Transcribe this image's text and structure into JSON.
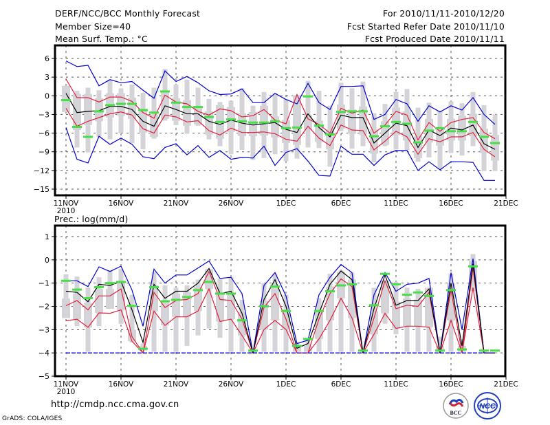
{
  "header": {
    "title": "DERF/NCC/BCC Monthly Forecast",
    "member_size": "Member Size=40",
    "var_label_top": "Mean Surf. Temp.: °C",
    "period": "For 2010/11/11-2010/12/20",
    "start_date": "Fcst Started Refer Date 2010/11/10",
    "produced_date": "Fcst Produced Date 2010/11/11"
  },
  "footer": {
    "url": "http://cmdp.ncc.cma.gov.cn",
    "grads": "GrADS: COLA/IGES",
    "logo_left": "BCC",
    "logo_right": "NCC"
  },
  "colors": {
    "mean": "#000000",
    "inner_band": "#e0203c",
    "outer_band": "#0000d0",
    "median_marker": "#44e044",
    "box": "#d4d4d8",
    "grid": "#555555"
  },
  "chart_data": [
    {
      "type": "line",
      "title": "Mean Surf. Temp.: °C",
      "xlabel": "",
      "ylabel": "°C",
      "ylim": [
        -16,
        8
      ],
      "yticks": [
        6,
        3,
        0,
        -3,
        -6,
        -9,
        -12,
        -15
      ],
      "ytick_labels": [
        "6",
        "3",
        "0",
        "−3",
        "−6",
        "−9",
        "−12",
        "−15"
      ],
      "xticks": [
        "11NOV",
        "16NOV",
        "21NOV",
        "26NOV",
        "1DEC",
        "6DEC",
        "11DEC",
        "16DEC",
        "21DEC"
      ],
      "xtick_day_offsets": [
        0,
        5,
        10,
        15,
        20,
        25,
        30,
        35,
        40
      ],
      "year_label": "2010",
      "grid": true,
      "x_days": 40,
      "series": [
        {
          "name": "max",
          "color_key": "outer_band",
          "values": [
            5.6,
            4.7,
            4.9,
            1.6,
            2.6,
            2.1,
            2.3,
            0.9,
            -0.4,
            4.0,
            2.3,
            3.1,
            2.1,
            0.8,
            0.2,
            0.3,
            1.1,
            -1.1,
            -1.1,
            0.4,
            -0.6,
            -1.3,
            2.0,
            -1.1,
            -2.2,
            1.5,
            1.5,
            1.6,
            -3.8,
            -3.0,
            -0.6,
            -1.3,
            -4.1,
            -1.6,
            -2.6,
            -1.6,
            -2.3,
            -0.3,
            -3.0,
            -4.6
          ]
        },
        {
          "name": "upper",
          "color_key": "inner_band",
          "values": [
            2.7,
            -0.3,
            -0.3,
            -1.0,
            -0.2,
            -0.2,
            -0.9,
            -2.7,
            -3.6,
            0.1,
            -1.0,
            -1.3,
            -2.5,
            -3.1,
            -2.1,
            -2.4,
            -3.4,
            -3.2,
            -2.2,
            -3.9,
            -4.5,
            0.2,
            -3.7,
            -4.6,
            -6.0,
            -2.0,
            -2.8,
            -2.3,
            -6.0,
            -4.7,
            -2.5,
            -3.1,
            -7.1,
            -4.3,
            -5.7,
            -4.3,
            -3.8,
            -3.5,
            -5.9,
            -6.9
          ]
        },
        {
          "name": "mean",
          "color_key": "mean",
          "values": [
            0.4,
            -2.7,
            -2.5,
            -2.4,
            -1.7,
            -1.7,
            -2.2,
            -4.1,
            -4.9,
            -1.6,
            -2.2,
            -2.9,
            -2.9,
            -4.1,
            -4.6,
            -3.9,
            -4.4,
            -4.7,
            -4.5,
            -4.3,
            -5.4,
            -5.9,
            -2.9,
            -5.1,
            -6.6,
            -3.1,
            -3.5,
            -3.5,
            -7.6,
            -6.0,
            -4.4,
            -4.8,
            -8.3,
            -5.5,
            -6.4,
            -5.2,
            -5.5,
            -4.7,
            -7.7,
            -8.6
          ]
        },
        {
          "name": "lower",
          "color_key": "inner_band",
          "values": [
            -2.0,
            -4.9,
            -4.1,
            -3.5,
            -2.9,
            -2.6,
            -3.1,
            -5.3,
            -6.0,
            -3.1,
            -3.4,
            -4.2,
            -4.0,
            -5.6,
            -6.3,
            -5.2,
            -5.9,
            -5.9,
            -5.8,
            -6.1,
            -7.0,
            -7.3,
            -4.9,
            -6.8,
            -8.0,
            -4.7,
            -5.5,
            -5.6,
            -8.7,
            -7.3,
            -5.7,
            -6.6,
            -9.4,
            -6.9,
            -7.4,
            -6.6,
            -6.6,
            -5.9,
            -8.6,
            -9.8
          ]
        },
        {
          "name": "min",
          "color_key": "outer_band",
          "values": [
            -5.1,
            -10.2,
            -10.8,
            -6.5,
            -7.8,
            -6.8,
            -7.8,
            -9.8,
            -10.1,
            -8.3,
            -7.7,
            -9.5,
            -8.0,
            -9.9,
            -8.8,
            -10.2,
            -9.9,
            -10.0,
            -8.1,
            -11.2,
            -9.1,
            -8.5,
            -10.5,
            -12.8,
            -12.9,
            -8.1,
            -9.4,
            -9.4,
            -11.2,
            -9.5,
            -8.8,
            -8.8,
            -12.0,
            -10.6,
            -11.9,
            -10.6,
            -10.6,
            -10.7,
            -13.6,
            -13.6
          ]
        },
        {
          "name": "ensemble_median",
          "color_key": "median_marker",
          "marker": "hline",
          "values": [
            -0.7,
            -5.0,
            -6.6,
            -2.5,
            -1.5,
            -1.3,
            -1.3,
            -2.3,
            -2.7,
            0.7,
            -1.1,
            -1.8,
            -1.8,
            -3.4,
            -4.2,
            -3.8,
            -4.1,
            -4.3,
            -4.3,
            -4.1,
            -5.2,
            -5.1,
            -0.1,
            -4.8,
            -6.2,
            -2.6,
            -2.5,
            -2.5,
            -6.5,
            -4.9,
            -4.2,
            -4.5,
            -7.5,
            -5.6,
            -5.2,
            -5.7,
            -5.7,
            -4.2,
            -6.6,
            -7.6
          ]
        },
        {
          "name": "box_outer",
          "color_key": "box",
          "type": "range",
          "low": [
            -2.6,
            -8.3,
            -9.1,
            -6.6,
            -7.0,
            -6.0,
            -7.6,
            -8.6,
            -6.9,
            -4.0,
            -4.7,
            -6.1,
            -4.8,
            -7.0,
            -8.1,
            -9.4,
            -8.7,
            -10.3,
            -10.0,
            -9.4,
            -10.5,
            -10.1,
            -8.3,
            -8.4,
            -11.4,
            -5.7,
            -8.5,
            -8.1,
            -10.7,
            -8.1,
            -8.6,
            -8.7,
            -10.6,
            -9.9,
            -11.8,
            -9.2,
            -9.6,
            -8.1,
            -12.1,
            -12.1
          ]
        },
        {
          "name": "box_outer_high",
          "color_key": "box",
          "type": "range_high",
          "values": [
            1.6,
            0.8,
            1.3,
            0.9,
            2.6,
            1.2,
            1.8,
            0.5,
            1.3,
            4.3,
            1.8,
            2.6,
            1.3,
            -0.5,
            -1.0,
            -0.8,
            1.2,
            -1.6,
            0.6,
            0.4,
            -0.5,
            0.1,
            2.4,
            0.8,
            -1.6,
            2.1,
            1.2,
            2.3,
            -2.8,
            -1.3,
            0.6,
            1.1,
            -1.9,
            -1.1,
            -2.4,
            -0.9,
            -1.2,
            0.6,
            -1.5,
            -3.0
          ]
        }
      ]
    },
    {
      "type": "line",
      "title": "Prec.: log(mm/d)",
      "xlabel": "",
      "ylabel": "log(mm/d)",
      "ylim": [
        -5,
        1.4
      ],
      "yticks": [
        1,
        0,
        -1,
        -2,
        -3,
        -4,
        -5
      ],
      "ytick_labels": [
        "1",
        "0",
        "−1",
        "−2",
        "−3",
        "−4",
        "−5"
      ],
      "xticks": [
        "11NOV",
        "16NOV",
        "21NOV",
        "26NOV",
        "1DEC",
        "6DEC",
        "11DEC",
        "16DEC",
        "21DEC"
      ],
      "xtick_day_offsets": [
        0,
        5,
        10,
        15,
        20,
        25,
        30,
        35,
        40
      ],
      "year_label": "2010",
      "grid": true,
      "x_days": 40,
      "baseline": -4,
      "series": [
        {
          "name": "max",
          "color_key": "outer_band",
          "values": [
            -0.9,
            -0.9,
            -1.15,
            -0.3,
            -0.5,
            -0.27,
            -1.3,
            -2.85,
            -0.4,
            -1.0,
            -0.65,
            -0.65,
            -0.35,
            -0.05,
            -0.8,
            -0.75,
            -1.45,
            -4.0,
            -1.1,
            -0.55,
            -1.55,
            -3.6,
            -3.45,
            -1.5,
            -0.75,
            -0.2,
            -0.55,
            -4.0,
            -1.5,
            -0.55,
            -1.35,
            -1.05,
            -1.0,
            -0.8,
            -4.0,
            -0.55,
            -3.0,
            0.05,
            -4.0,
            -4.0
          ]
        },
        {
          "name": "upper",
          "color_key": "inner_band",
          "values": [
            -1.97,
            -1.75,
            -2.15,
            -1.55,
            -1.55,
            -1.25,
            -3.3,
            -4.0,
            -1.4,
            -2.05,
            -1.75,
            -1.7,
            -1.45,
            -0.5,
            -1.7,
            -1.75,
            -2.55,
            -4.0,
            -2.05,
            -1.45,
            -2.55,
            -4.0,
            -4.0,
            -2.55,
            -1.45,
            -0.82,
            -1.15,
            -4.0,
            -2.5,
            -0.9,
            -2.1,
            -1.95,
            -2.0,
            -1.4,
            -4.0,
            -1.3,
            -4.0,
            -0.35,
            -4.0,
            -4.0
          ]
        },
        {
          "name": "mean",
          "color_key": "mean",
          "values": [
            -1.35,
            -1.4,
            -1.8,
            -1.05,
            -1.1,
            -0.92,
            -2.15,
            -3.55,
            -1.05,
            -1.65,
            -1.35,
            -1.35,
            -1.0,
            -0.37,
            -1.45,
            -1.35,
            -2.3,
            -4.0,
            -1.7,
            -0.85,
            -2.0,
            -3.8,
            -3.6,
            -2.3,
            -1.05,
            -0.48,
            -0.85,
            -4.0,
            -2.1,
            -0.65,
            -1.95,
            -1.75,
            -1.75,
            -1.25,
            -4.0,
            -1.0,
            -3.7,
            -0.17,
            -4.0,
            -4.0
          ]
        },
        {
          "name": "lower",
          "color_key": "inner_band",
          "values": [
            -2.62,
            -2.55,
            -2.9,
            -2.28,
            -2.3,
            -2.15,
            -3.5,
            -4.0,
            -2.2,
            -2.82,
            -2.45,
            -2.45,
            -2.2,
            -1.25,
            -2.65,
            -2.55,
            -3.25,
            -4.0,
            -3.0,
            -2.6,
            -3.0,
            -4.0,
            -4.0,
            -3.4,
            -2.6,
            -1.65,
            -2.5,
            -4.0,
            -3.2,
            -2.3,
            -2.95,
            -2.85,
            -2.85,
            -2.9,
            -4.0,
            -2.6,
            -4.0,
            -1.2,
            -4.0,
            -4.0
          ]
        },
        {
          "name": "min",
          "color_key": "outer_band",
          "values": [
            -4,
            -4,
            -4,
            -4,
            -4,
            -4,
            -4,
            -4,
            -4,
            -4,
            -4,
            -4,
            -4,
            -4,
            -4,
            -4,
            -4,
            -4,
            -4,
            -4,
            -4,
            -4,
            -4,
            -4,
            -4,
            -4,
            -4,
            -4,
            -4,
            -4,
            -4,
            -4,
            -4,
            -4,
            -4,
            -4,
            -4,
            -4,
            -4,
            -4
          ]
        },
        {
          "name": "ensemble_median",
          "color_key": "median_marker",
          "marker": "hline",
          "values": [
            -0.9,
            -1.28,
            -1.65,
            -1.17,
            -1.0,
            -0.95,
            -1.98,
            -3.82,
            -1.17,
            -1.78,
            -1.72,
            -1.6,
            -1.3,
            -0.95,
            -1.45,
            -1.45,
            -2.6,
            -3.9,
            -2.0,
            -1.15,
            -2.2,
            -3.7,
            -3.4,
            -2.2,
            -1.35,
            -1.1,
            -1.05,
            -3.9,
            -1.95,
            -0.6,
            -1.05,
            -1.5,
            -1.4,
            -1.55,
            -3.9,
            -1.3,
            -3.85,
            -0.28,
            -3.9,
            -3.9
          ]
        },
        {
          "name": "box_low",
          "color_key": "box",
          "type": "range_low",
          "values": [
            -2.5,
            -2.85,
            -3.95,
            -2.85,
            -2.1,
            -2.75,
            -3.55,
            -3.9,
            -3.95,
            -3.95,
            -3.95,
            -3.7,
            -3.25,
            -2.95,
            -3.35,
            -3.95,
            -3.95,
            -4.0,
            -3.95,
            -3.95,
            -3.95,
            -3.95,
            -3.95,
            -3.95,
            -3.95,
            -3.95,
            -3.95,
            -3.95,
            -3.95,
            -2.75,
            -3.2,
            -3.95,
            -3.95,
            -3.95,
            -3.95,
            -3.95,
            -3.95,
            -1.35,
            -3.95,
            -4.0
          ]
        },
        {
          "name": "box_high",
          "color_key": "box",
          "type": "range_high",
          "values": [
            -0.62,
            -0.72,
            -1.2,
            -0.75,
            -0.45,
            -0.38,
            -1.5,
            -3.6,
            -0.52,
            -1.1,
            -1.2,
            -1.1,
            -0.85,
            -0.4,
            -0.82,
            -0.75,
            -1.72,
            -3.95,
            -1.0,
            -0.6,
            -1.5,
            -3.55,
            -3.4,
            -1.65,
            -0.6,
            -0.45,
            -0.55,
            -3.95,
            -1.2,
            -0.9,
            -0.95,
            -1.2,
            -1.25,
            -1.2,
            -3.3,
            -0.6,
            -3.4,
            0.25,
            -3.95,
            -4.0
          ]
        }
      ]
    }
  ]
}
